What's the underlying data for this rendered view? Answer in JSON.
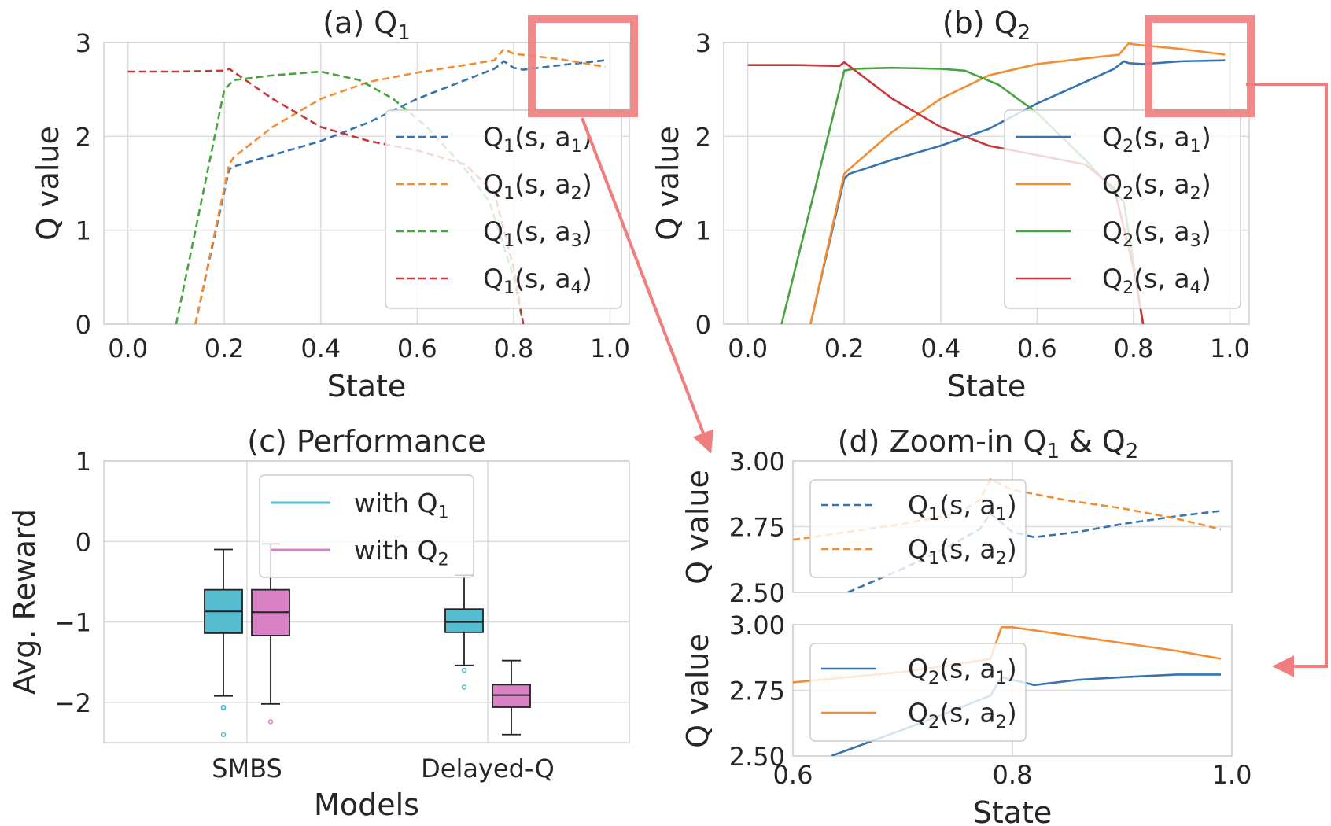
{
  "colors": {
    "blue": "#3574b0",
    "orange": "#f38d33",
    "green": "#47a33f",
    "red": "#c7383a",
    "cyan": "#55bdcf",
    "pink": "#da80c5",
    "highlight": "#f07e7e",
    "grid": "#dcdcdc",
    "frame": "#d0d0d0"
  },
  "chart_data": [
    {
      "id": "a",
      "type": "line",
      "title": "(a) Q",
      "title_sub": "1",
      "xlabel": "State",
      "ylabel": "Q value",
      "xlim": [
        -0.05,
        1.04
      ],
      "ylim": [
        0,
        3.0
      ],
      "xticks": [
        "0.0",
        "0.2",
        "0.4",
        "0.6",
        "0.8",
        "1.0"
      ],
      "yticks": [
        "0",
        "1",
        "2",
        "3"
      ],
      "dashed": true,
      "legend": [
        {
          "q": "Q",
          "sub": "1",
          "args": "(s, a",
          "asub": "1",
          "close": ")",
          "color_key": "blue"
        },
        {
          "q": "Q",
          "sub": "1",
          "args": "(s, a",
          "asub": "2",
          "close": ")",
          "color_key": "orange"
        },
        {
          "q": "Q",
          "sub": "1",
          "args": "(s, a",
          "asub": "3",
          "close": ")",
          "color_key": "green"
        },
        {
          "q": "Q",
          "sub": "1",
          "args": "(s, a",
          "asub": "4",
          "close": ")",
          "color_key": "red"
        }
      ],
      "series": [
        {
          "name": "Q1(s,a1)",
          "color_key": "blue",
          "x": [
            0.14,
            0.21,
            0.22,
            0.3,
            0.4,
            0.5,
            0.6,
            0.7,
            0.76,
            0.78,
            0.8,
            0.82,
            0.9,
            0.99
          ],
          "y": [
            0.0,
            1.65,
            1.68,
            1.8,
            1.95,
            2.15,
            2.4,
            2.6,
            2.72,
            2.8,
            2.73,
            2.71,
            2.76,
            2.81
          ]
        },
        {
          "name": "Q1(s,a2)",
          "color_key": "orange",
          "x": [
            0.14,
            0.21,
            0.22,
            0.3,
            0.4,
            0.5,
            0.6,
            0.7,
            0.76,
            0.78,
            0.8,
            0.9,
            0.99
          ],
          "y": [
            0.0,
            1.7,
            1.78,
            2.1,
            2.4,
            2.58,
            2.68,
            2.76,
            2.81,
            2.93,
            2.88,
            2.82,
            2.74
          ]
        },
        {
          "name": "Q1(s,a3)",
          "color_key": "green",
          "x": [
            0.1,
            0.2,
            0.22,
            0.3,
            0.4,
            0.48,
            0.55,
            0.62,
            0.7,
            0.75,
            0.8,
            0.82
          ],
          "y": [
            0.0,
            2.5,
            2.6,
            2.65,
            2.69,
            2.6,
            2.4,
            2.1,
            1.65,
            1.3,
            0.5,
            0.0
          ]
        },
        {
          "name": "Q1(s,a4)",
          "color_key": "red",
          "x": [
            0.0,
            0.1,
            0.2,
            0.21,
            0.3,
            0.4,
            0.5,
            0.6,
            0.7,
            0.76,
            0.8,
            0.82
          ],
          "y": [
            2.69,
            2.69,
            2.7,
            2.72,
            2.4,
            2.1,
            1.95,
            1.85,
            1.7,
            1.4,
            0.6,
            0.0
          ]
        }
      ]
    },
    {
      "id": "b",
      "type": "line",
      "title": "(b) Q",
      "title_sub": "2",
      "xlabel": "State",
      "ylabel": "Q value",
      "xlim": [
        -0.05,
        1.04
      ],
      "ylim": [
        0,
        3.0
      ],
      "xticks": [
        "0.0",
        "0.2",
        "0.4",
        "0.6",
        "0.8",
        "1.0"
      ],
      "yticks": [
        "0",
        "1",
        "2",
        "3"
      ],
      "dashed": false,
      "legend": [
        {
          "q": "Q",
          "sub": "2",
          "args": "(s, a",
          "asub": "1",
          "close": ")",
          "color_key": "blue"
        },
        {
          "q": "Q",
          "sub": "2",
          "args": "(s, a",
          "asub": "2",
          "close": ")",
          "color_key": "orange"
        },
        {
          "q": "Q",
          "sub": "2",
          "args": "(s, a",
          "asub": "3",
          "close": ")",
          "color_key": "green"
        },
        {
          "q": "Q",
          "sub": "2",
          "args": "(s, a",
          "asub": "4",
          "close": ")",
          "color_key": "red"
        }
      ],
      "series": [
        {
          "name": "Q2(s,a1)",
          "color_key": "blue",
          "x": [
            0.13,
            0.2,
            0.21,
            0.3,
            0.4,
            0.5,
            0.6,
            0.7,
            0.76,
            0.78,
            0.79,
            0.82,
            0.9,
            0.99
          ],
          "y": [
            0.0,
            1.55,
            1.6,
            1.75,
            1.9,
            2.08,
            2.35,
            2.58,
            2.72,
            2.8,
            2.78,
            2.77,
            2.8,
            2.81
          ]
        },
        {
          "name": "Q2(s,a2)",
          "color_key": "orange",
          "x": [
            0.13,
            0.2,
            0.21,
            0.3,
            0.4,
            0.5,
            0.6,
            0.7,
            0.77,
            0.79,
            0.8,
            0.9,
            0.99
          ],
          "y": [
            0.0,
            1.6,
            1.65,
            2.05,
            2.4,
            2.65,
            2.77,
            2.83,
            2.87,
            2.99,
            2.98,
            2.93,
            2.87
          ]
        },
        {
          "name": "Q2(s,a3)",
          "color_key": "green",
          "x": [
            0.07,
            0.2,
            0.22,
            0.3,
            0.4,
            0.45,
            0.52,
            0.6,
            0.7,
            0.78,
            0.82
          ],
          "y": [
            0.0,
            2.7,
            2.72,
            2.73,
            2.72,
            2.7,
            2.55,
            2.25,
            1.75,
            1.3,
            0.0
          ]
        },
        {
          "name": "Q2(s,a4)",
          "color_key": "red",
          "x": [
            0.0,
            0.1,
            0.19,
            0.2,
            0.3,
            0.4,
            0.5,
            0.6,
            0.7,
            0.76,
            0.8,
            0.82
          ],
          "y": [
            2.76,
            2.76,
            2.75,
            2.79,
            2.4,
            2.1,
            1.9,
            1.8,
            1.7,
            1.45,
            0.6,
            0.0
          ]
        }
      ]
    },
    {
      "id": "c",
      "type": "box",
      "title": "(c) Performance",
      "xlabel": "Models",
      "ylabel": "Avg. Reward",
      "ylim": [
        -2.5,
        1.0
      ],
      "yticks": [
        "1",
        "0",
        "−1",
        "−2"
      ],
      "ytick_values": [
        1,
        0,
        -1,
        -2
      ],
      "categories": [
        "SMBS",
        "Delayed-Q"
      ],
      "legend": [
        {
          "label": "with Q",
          "sub": "1",
          "color_key": "cyan"
        },
        {
          "label": "with Q",
          "sub": "2",
          "color_key": "pink"
        }
      ],
      "boxes": [
        {
          "group": 0,
          "series": "with Q1",
          "color_key": "cyan",
          "whisker_low": -1.92,
          "q1": -1.14,
          "median": -0.87,
          "q3": -0.6,
          "whisker_high": -0.1,
          "outliers": [
            -2.06,
            -2.07,
            -2.4
          ]
        },
        {
          "group": 0,
          "series": "with Q2",
          "color_key": "pink",
          "whisker_low": -2.02,
          "q1": -1.17,
          "median": -0.88,
          "q3": -0.6,
          "whisker_high": -0.03,
          "outliers": [
            -2.24
          ]
        },
        {
          "group": 1,
          "series": "with Q1",
          "color_key": "cyan",
          "whisker_low": -1.54,
          "q1": -1.13,
          "median": -1.0,
          "q3": -0.84,
          "whisker_high": -0.42,
          "outliers": [
            -1.6,
            -1.81
          ]
        },
        {
          "group": 1,
          "series": "with Q2",
          "color_key": "pink",
          "whisker_low": -2.4,
          "q1": -2.06,
          "median": -1.91,
          "q3": -1.78,
          "whisker_high": -1.48,
          "outliers": []
        }
      ]
    },
    {
      "id": "d",
      "type": "line",
      "title": "(d) Zoom-in Q",
      "title_sub1": "1",
      "title_mid": " & Q",
      "title_sub2": "2",
      "xlabel": "State",
      "ylabel": "Q value",
      "xlim": [
        0.6,
        1.0
      ],
      "ylim": [
        2.5,
        3.0
      ],
      "xticks": [
        "0.6",
        "0.8",
        "1.0"
      ],
      "xtick_values": [
        0.6,
        0.8,
        1.0
      ],
      "yticks": [
        "3.00",
        "2.75",
        "2.50"
      ],
      "ytick_values": [
        3.0,
        2.75,
        2.5
      ],
      "panels": [
        {
          "dashed": true,
          "legend": [
            {
              "q": "Q",
              "sub": "1",
              "args": "(s, a",
              "asub": "1",
              "close": ")",
              "color_key": "blue"
            },
            {
              "q": "Q",
              "sub": "1",
              "args": "(s, a",
              "asub": "2",
              "close": ")",
              "color_key": "orange"
            }
          ],
          "series": [
            {
              "name": "Q1(s,a1)",
              "color_key": "blue",
              "x": [
                0.65,
                0.7,
                0.74,
                0.77,
                0.78,
                0.8,
                0.82,
                0.86,
                0.9,
                0.95,
                0.99
              ],
              "y": [
                2.5,
                2.59,
                2.67,
                2.74,
                2.8,
                2.73,
                2.71,
                2.73,
                2.76,
                2.79,
                2.81
              ]
            },
            {
              "name": "Q1(s,a2)",
              "color_key": "orange",
              "x": [
                0.6,
                0.65,
                0.7,
                0.75,
                0.77,
                0.78,
                0.8,
                0.85,
                0.9,
                0.95,
                0.99
              ],
              "y": [
                2.7,
                2.73,
                2.76,
                2.8,
                2.85,
                2.93,
                2.89,
                2.85,
                2.82,
                2.78,
                2.74
              ]
            }
          ]
        },
        {
          "dashed": false,
          "legend": [
            {
              "q": "Q",
              "sub": "2",
              "args": "(s, a",
              "asub": "1",
              "close": ")",
              "color_key": "blue"
            },
            {
              "q": "Q",
              "sub": "2",
              "args": "(s, a",
              "asub": "2",
              "close": ")",
              "color_key": "orange"
            }
          ],
          "series": [
            {
              "name": "Q2(s,a1)",
              "color_key": "blue",
              "x": [
                0.635,
                0.7,
                0.75,
                0.78,
                0.79,
                0.8,
                0.82,
                0.86,
                0.9,
                0.95,
                0.99
              ],
              "y": [
                2.5,
                2.6,
                2.68,
                2.73,
                2.8,
                2.79,
                2.77,
                2.79,
                2.8,
                2.81,
                2.81
              ]
            },
            {
              "name": "Q2(s,a2)",
              "color_key": "orange",
              "x": [
                0.6,
                0.65,
                0.7,
                0.75,
                0.78,
                0.79,
                0.8,
                0.85,
                0.9,
                0.95,
                0.99
              ],
              "y": [
                2.78,
                2.8,
                2.82,
                2.85,
                2.87,
                2.99,
                2.99,
                2.96,
                2.93,
                2.9,
                2.87
              ]
            }
          ]
        }
      ]
    }
  ]
}
